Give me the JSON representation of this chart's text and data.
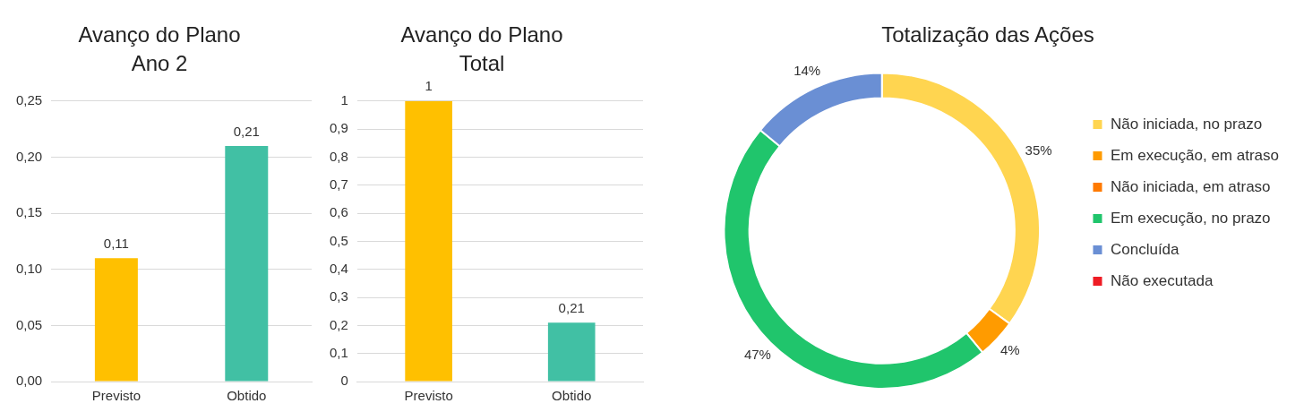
{
  "chart_data": [
    {
      "type": "bar",
      "title": "Avanço do Plano\nAno 2",
      "categories": [
        "Previsto",
        "Obtido"
      ],
      "values": [
        0.11,
        0.21
      ],
      "colors": [
        "#ffc000",
        "#41c0a4"
      ],
      "value_labels": [
        "0,11",
        "0,21"
      ],
      "ylim": [
        0,
        0.25
      ],
      "yticks": [
        {
          "value": 0,
          "label": "0,00"
        },
        {
          "value": 0.05,
          "label": "0,05"
        },
        {
          "value": 0.1,
          "label": "0,10"
        },
        {
          "value": 0.15,
          "label": "0,15"
        },
        {
          "value": 0.2,
          "label": "0,20"
        },
        {
          "value": 0.25,
          "label": "0,25"
        }
      ],
      "grid": "y"
    },
    {
      "type": "bar",
      "title": "Avanço do Plano\nTotal",
      "categories": [
        "Previsto",
        "Obtido"
      ],
      "values": [
        1,
        0.21
      ],
      "colors": [
        "#ffc000",
        "#41c0a4"
      ],
      "value_labels": [
        "1",
        "0,21"
      ],
      "ylim": [
        0,
        1
      ],
      "yticks": [
        0,
        {
          "value": 0.1,
          "label": "0,1"
        },
        {
          "value": 0.2,
          "label": "0,2"
        },
        {
          "value": 0.3,
          "label": "0,3"
        },
        {
          "value": 0.4,
          "label": "0,4"
        },
        {
          "value": 0.5,
          "label": "0,5"
        },
        {
          "value": 0.6,
          "label": "0,6"
        },
        {
          "value": 0.7,
          "label": "0,7"
        },
        {
          "value": 0.8,
          "label": "0,8"
        },
        {
          "value": 0.9,
          "label": "0,9"
        },
        1
      ],
      "grid": "y"
    },
    {
      "type": "donut",
      "title": "Totalização das Ações",
      "categories": [
        "Não iniciada, no prazo",
        "Em execução, em atraso",
        "Não iniciada, em atraso",
        "Em execução, no prazo",
        "Concluída",
        "Não executada"
      ],
      "values": [
        35,
        4,
        0,
        47,
        14,
        0
      ],
      "colors": [
        "#ffd550",
        "#ff9b00",
        "#ff7a00",
        "#20c56c",
        "#6a8fd4",
        "#ee1c24"
      ],
      "value_labels": [
        "35%",
        "4%",
        null,
        "47%",
        "14%",
        null
      ],
      "legend": "right"
    }
  ]
}
